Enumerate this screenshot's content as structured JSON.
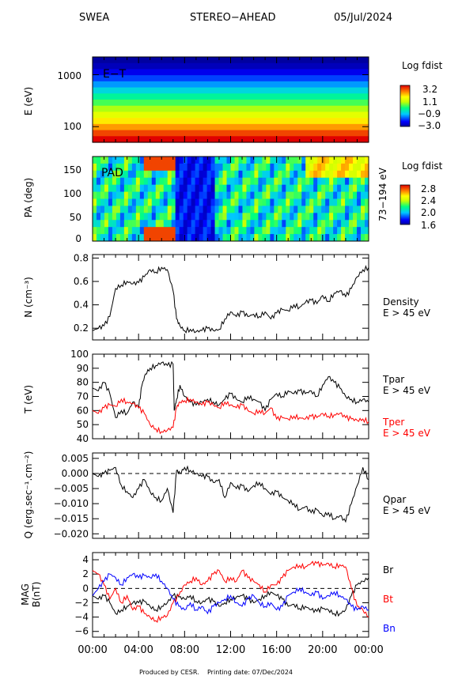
{
  "header": {
    "instrument": "SWEA",
    "spacecraft": "STEREO−AHEAD",
    "date": "05/Jul/2024"
  },
  "footer": {
    "produced": "Produced by CESR.",
    "printing": "Printing date: 07/Dec/2024"
  },
  "x_axis": {
    "ticks": [
      "00:00",
      "04:00",
      "08:00",
      "12:00",
      "16:00",
      "20:00",
      "00:00"
    ]
  },
  "colors": {
    "black": "#000000",
    "red": "#ff0000",
    "blue": "#0000ff"
  },
  "chart_data": [
    {
      "type": "heatmap",
      "panel": "energy-time",
      "inner_label": "E−T",
      "ylabel": "E (eV)",
      "y_ticks": [
        "1000",
        "100"
      ],
      "ylim": [
        50,
        2200
      ],
      "log_y": true,
      "colorbar": {
        "title": "Log fdist",
        "ticks": [
          "3.2",
          "1.1",
          "−0.9",
          "−3.0"
        ],
        "range": [
          -3.0,
          3.2
        ]
      },
      "energy_bands_log": [
        3.2,
        2.7,
        2.1,
        1.6,
        1.1,
        0.6,
        0.1,
        -0.4,
        -0.9,
        -1.4,
        -1.9,
        -2.4,
        -2.8,
        -3.0
      ]
    },
    {
      "type": "heatmap",
      "panel": "pitch-angle",
      "inner_label": "PAD",
      "ylabel": "PA (deg)",
      "side_label": "73−194 eV",
      "y_ticks": [
        "150",
        "100",
        "50",
        "0"
      ],
      "ylim": [
        0,
        180
      ],
      "colorbar": {
        "title": "Log fdist",
        "ticks": [
          "2.8",
          "2.4",
          "2.0",
          "1.6"
        ],
        "range": [
          1.6,
          2.8
        ]
      }
    },
    {
      "type": "line",
      "panel": "density",
      "ylabel": "N (cm⁻³)",
      "side_label": [
        "Density",
        "E > 45 eV"
      ],
      "y_ticks": [
        "0.8",
        "0.6",
        "0.4",
        "0.2"
      ],
      "ylim": [
        0.1,
        0.83
      ],
      "x_hours": [
        0,
        0.5,
        1.0,
        1.5,
        2.0,
        2.5,
        3.0,
        3.5,
        4.0,
        4.5,
        5.0,
        5.5,
        6.0,
        6.5,
        7.0,
        7.3,
        7.6,
        8.0,
        8.5,
        9.0,
        9.5,
        10.0,
        10.5,
        11.0,
        11.5,
        12.0,
        12.5,
        13.0,
        13.5,
        14.0,
        14.5,
        15.0,
        15.5,
        16.0,
        16.5,
        17.0,
        17.5,
        18.0,
        18.5,
        19.0,
        19.5,
        20.0,
        20.5,
        21.0,
        21.5,
        22.0,
        22.5,
        23.0,
        23.5,
        24.0
      ],
      "values": [
        0.18,
        0.2,
        0.22,
        0.3,
        0.54,
        0.57,
        0.6,
        0.58,
        0.59,
        0.64,
        0.7,
        0.68,
        0.72,
        0.7,
        0.52,
        0.28,
        0.22,
        0.18,
        0.19,
        0.17,
        0.18,
        0.2,
        0.18,
        0.19,
        0.28,
        0.34,
        0.3,
        0.34,
        0.3,
        0.32,
        0.3,
        0.34,
        0.28,
        0.33,
        0.36,
        0.35,
        0.4,
        0.38,
        0.42,
        0.44,
        0.41,
        0.48,
        0.43,
        0.5,
        0.52,
        0.47,
        0.54,
        0.64,
        0.7,
        0.72
      ]
    },
    {
      "type": "line",
      "panel": "temperature",
      "ylabel": "T (eV)",
      "y_ticks": [
        "100",
        "90",
        "80",
        "70",
        "60",
        "50",
        "40"
      ],
      "ylim": [
        40,
        100
      ],
      "series": [
        {
          "name": "Tpar",
          "sublabel": "E > 45 eV",
          "color": "#000000",
          "x_hours": [
            0,
            0.5,
            1.0,
            1.5,
            2.0,
            2.5,
            3.0,
            3.5,
            4.0,
            4.3,
            4.6,
            5.0,
            5.5,
            6.0,
            6.5,
            7.0,
            7.1,
            7.3,
            7.6,
            8.0,
            8.5,
            9.0,
            9.5,
            10.0,
            10.5,
            11.0,
            11.5,
            12.0,
            12.5,
            13.0,
            13.5,
            14.0,
            14.5,
            15.0,
            15.5,
            16.0,
            16.5,
            17.0,
            17.5,
            18.0,
            18.5,
            19.0,
            19.5,
            20.0,
            20.5,
            21.0,
            21.5,
            22.0,
            22.5,
            23.0,
            23.5,
            24.0
          ],
          "values": [
            76,
            74,
            80,
            72,
            55,
            60,
            58,
            66,
            62,
            78,
            86,
            90,
            92,
            94,
            92,
            93,
            60,
            68,
            78,
            70,
            66,
            64,
            66,
            68,
            66,
            64,
            68,
            72,
            68,
            66,
            70,
            68,
            66,
            60,
            68,
            72,
            70,
            74,
            72,
            74,
            72,
            74,
            70,
            78,
            84,
            80,
            76,
            70,
            68,
            66,
            68,
            66
          ]
        },
        {
          "name": "Tper",
          "sublabel": "E > 45 eV",
          "color": "#ff0000",
          "x_hours": [
            0,
            0.5,
            1.0,
            1.5,
            2.0,
            2.5,
            3.0,
            3.5,
            4.0,
            4.5,
            5.0,
            5.5,
            6.0,
            6.5,
            7.0,
            7.3,
            7.6,
            8.0,
            8.5,
            9.0,
            9.5,
            10.0,
            10.5,
            11.0,
            11.5,
            12.0,
            12.5,
            13.0,
            13.5,
            14.0,
            14.5,
            15.0,
            15.5,
            16.0,
            16.5,
            17.0,
            17.5,
            18.0,
            18.5,
            19.0,
            19.5,
            20.0,
            20.5,
            21.0,
            21.5,
            22.0,
            22.5,
            23.0,
            23.5,
            24.0
          ],
          "values": [
            60,
            58,
            62,
            64,
            63,
            68,
            66,
            65,
            62,
            58,
            50,
            47,
            45,
            46,
            48,
            62,
            66,
            67,
            68,
            66,
            64,
            66,
            64,
            62,
            66,
            64,
            62,
            64,
            60,
            58,
            60,
            58,
            62,
            54,
            55,
            54,
            56,
            55,
            54,
            56,
            55,
            58,
            56,
            57,
            58,
            55,
            54,
            53,
            54,
            52
          ]
        }
      ]
    },
    {
      "type": "line",
      "panel": "heat-flux",
      "ylabel": "Q (erg.sec⁻¹.cm⁻²)",
      "side_label": [
        "Qpar",
        "E > 45 eV"
      ],
      "y_ticks": [
        "0.005",
        "0.000",
        "−0.005",
        "−0.010",
        "−0.015",
        "−0.020"
      ],
      "ylim": [
        -0.0215,
        0.0068
      ],
      "x_hours": [
        0,
        0.5,
        1.0,
        1.5,
        2.0,
        2.5,
        3.0,
        3.5,
        4.0,
        4.5,
        5.0,
        5.5,
        6.0,
        6.5,
        7.0,
        7.3,
        7.6,
        8.0,
        8.5,
        9.0,
        9.5,
        10.0,
        10.5,
        11.0,
        11.5,
        12.0,
        12.5,
        13.0,
        13.5,
        14.0,
        14.5,
        15.0,
        15.5,
        16.0,
        16.5,
        17.0,
        17.5,
        18.0,
        18.5,
        19.0,
        19.5,
        20.0,
        20.5,
        21.0,
        21.5,
        22.0,
        22.5,
        23.0,
        23.5,
        24.0
      ],
      "values": [
        0.0,
        -0.001,
        0.0,
        0.001,
        0.002,
        -0.004,
        -0.006,
        -0.008,
        -0.005,
        -0.002,
        -0.006,
        -0.008,
        -0.009,
        -0.005,
        -0.013,
        0.001,
        0.0,
        0.002,
        0.001,
        0.0,
        -0.001,
        -0.001,
        -0.003,
        -0.002,
        -0.008,
        -0.003,
        -0.005,
        -0.004,
        -0.006,
        -0.004,
        -0.003,
        -0.005,
        -0.007,
        -0.006,
        -0.008,
        -0.009,
        -0.01,
        -0.012,
        -0.011,
        -0.013,
        -0.012,
        -0.014,
        -0.013,
        -0.015,
        -0.014,
        -0.016,
        -0.01,
        -0.004,
        0.002,
        -0.002
      ]
    },
    {
      "type": "line",
      "panel": "magnetic-field",
      "ylabel": [
        "MAG",
        "B(nT)"
      ],
      "y_ticks": [
        "4",
        "2",
        "0",
        "−2",
        "−4",
        "−6"
      ],
      "ylim": [
        -6.8,
        5.0
      ],
      "series": [
        {
          "name": "Br",
          "color": "#000000",
          "x_hours": [
            0,
            0.5,
            1.0,
            1.5,
            2.0,
            2.5,
            3.0,
            3.5,
            4.0,
            4.5,
            5.0,
            5.5,
            6.0,
            6.5,
            7.0,
            7.5,
            8.0,
            8.5,
            9.0,
            9.5,
            10.0,
            10.5,
            11.0,
            11.5,
            12.0,
            12.5,
            13.0,
            13.5,
            14.0,
            14.5,
            15.0,
            15.5,
            16.0,
            16.5,
            17.0,
            17.5,
            18.0,
            18.5,
            19.0,
            19.5,
            20.0,
            20.5,
            21.0,
            21.5,
            22.0,
            22.5,
            23.0,
            23.5,
            24.0
          ],
          "values": [
            -1.0,
            -1.5,
            -1.0,
            -2.0,
            -3.5,
            -3.0,
            -2.5,
            -2.0,
            -2.0,
            -1.8,
            -2.5,
            -3.0,
            -2.5,
            -2.0,
            -1.0,
            -1.2,
            -1.5,
            -1.0,
            -1.8,
            -2.0,
            -1.5,
            -1.8,
            -2.5,
            -2.0,
            -1.5,
            -1.2,
            -1.0,
            -1.5,
            -2.0,
            -1.5,
            -1.0,
            -0.5,
            -1.0,
            -1.5,
            -2.5,
            -2.2,
            -2.8,
            -2.5,
            -3.0,
            -3.2,
            -2.8,
            -3.0,
            -3.5,
            -3.5,
            -3.0,
            -1.0,
            0.5,
            1.0,
            1.5
          ]
        },
        {
          "name": "Bt",
          "color": "#ff0000",
          "x_hours": [
            0,
            0.5,
            1.0,
            1.5,
            2.0,
            2.5,
            3.0,
            3.5,
            4.0,
            4.5,
            5.0,
            5.5,
            6.0,
            6.5,
            7.0,
            7.5,
            8.0,
            8.5,
            9.0,
            9.5,
            10.0,
            10.5,
            11.0,
            11.5,
            12.0,
            12.5,
            13.0,
            13.5,
            14.0,
            14.5,
            15.0,
            15.5,
            16.0,
            16.5,
            17.0,
            17.5,
            18.0,
            18.5,
            19.0,
            19.5,
            20.0,
            20.5,
            21.0,
            21.5,
            22.0,
            22.5,
            23.0,
            23.5,
            24.0
          ],
          "values": [
            2.5,
            2.0,
            0.5,
            -1.5,
            0.0,
            -2.0,
            -1.0,
            -3.0,
            -2.5,
            -3.5,
            -4.0,
            -4.5,
            -4.0,
            -3.8,
            -2.0,
            -1.0,
            0.5,
            1.0,
            1.5,
            0.5,
            1.0,
            2.0,
            2.5,
            1.0,
            1.5,
            1.0,
            2.5,
            1.5,
            1.0,
            0.5,
            -0.5,
            0.5,
            0.5,
            1.5,
            2.5,
            3.0,
            3.2,
            3.0,
            3.5,
            3.5,
            3.2,
            3.5,
            3.0,
            3.3,
            3.0,
            0.0,
            -2.5,
            -3.0,
            -4.0
          ]
        },
        {
          "name": "Bn",
          "color": "#0000ff",
          "x_hours": [
            0,
            0.5,
            1.0,
            1.5,
            2.0,
            2.5,
            3.0,
            3.5,
            4.0,
            4.5,
            5.0,
            5.5,
            6.0,
            6.5,
            7.0,
            7.5,
            8.0,
            8.5,
            9.0,
            9.5,
            10.0,
            10.5,
            11.0,
            11.5,
            12.0,
            12.5,
            13.0,
            13.5,
            14.0,
            14.5,
            15.0,
            15.5,
            16.0,
            16.5,
            17.0,
            17.5,
            18.0,
            18.5,
            19.0,
            19.5,
            20.0,
            20.5,
            21.0,
            21.5,
            22.0,
            22.5,
            23.0,
            23.5,
            24.0
          ],
          "values": [
            -1.0,
            0.0,
            1.0,
            2.0,
            1.5,
            0.5,
            1.5,
            2.0,
            1.5,
            1.8,
            1.5,
            2.0,
            1.0,
            0.0,
            -1.5,
            -2.5,
            -3.0,
            -2.0,
            -3.0,
            -2.5,
            -3.5,
            -2.5,
            -2.0,
            -1.5,
            -1.0,
            -2.0,
            -2.5,
            -1.5,
            -1.0,
            -2.0,
            -2.5,
            -2.0,
            -3.0,
            -2.5,
            -1.0,
            -0.5,
            0.0,
            -0.5,
            -1.0,
            -0.5,
            -1.5,
            -1.0,
            -0.5,
            -1.0,
            -1.5,
            -2.5,
            -3.0,
            -2.5,
            -3.0
          ]
        }
      ]
    }
  ]
}
